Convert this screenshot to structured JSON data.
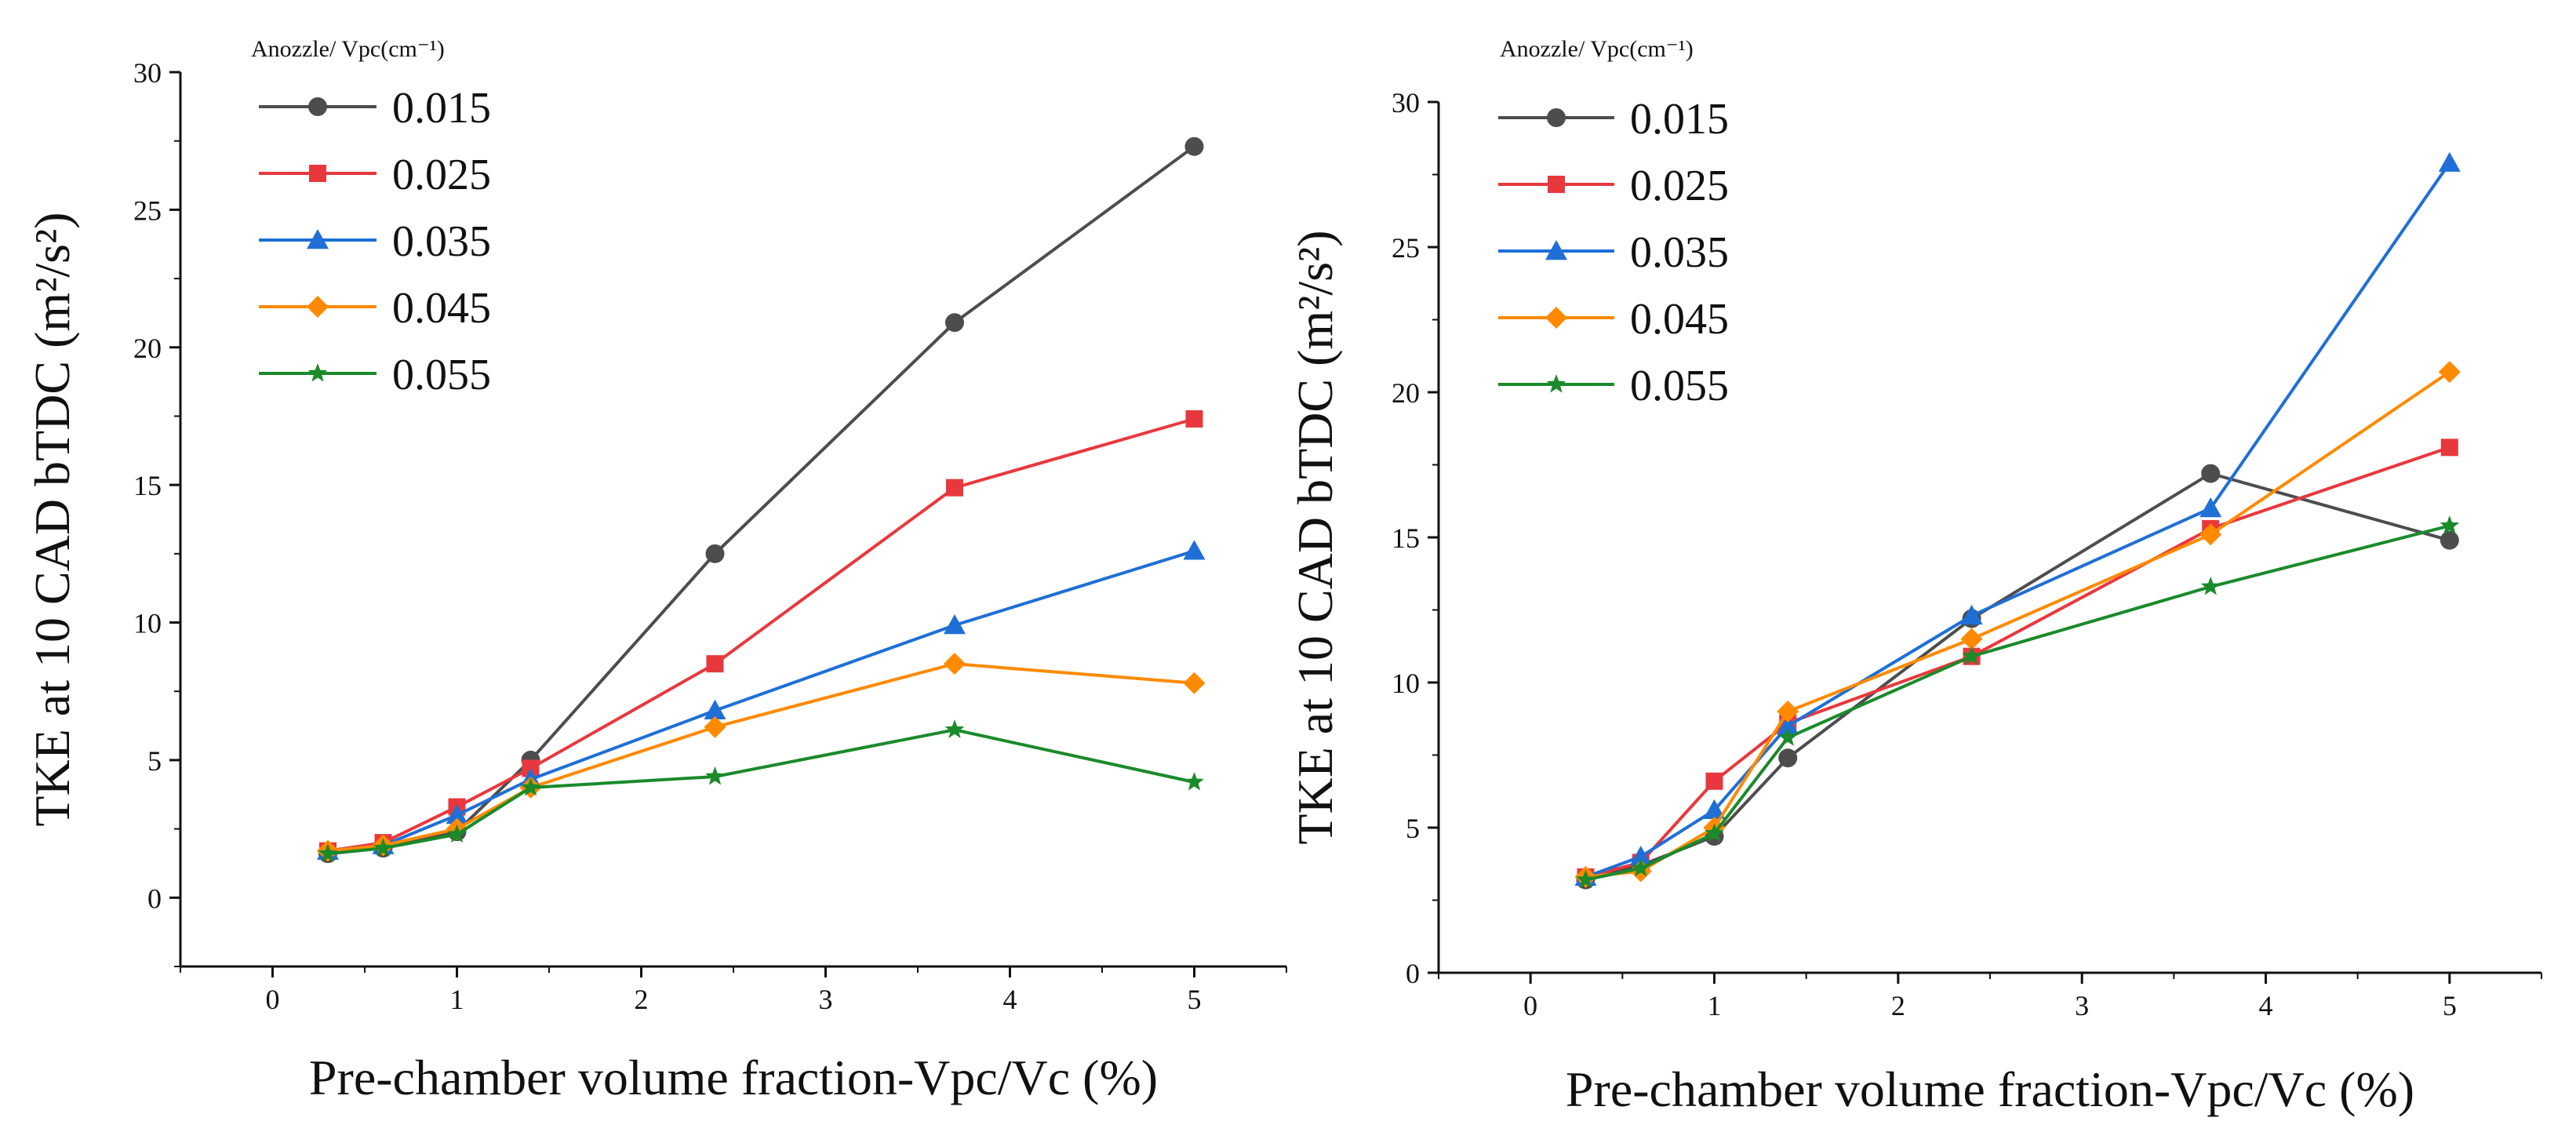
{
  "chart_data": [
    {
      "type": "line",
      "title": "",
      "xlabel": "Pre-chamber volume fraction-Vpc/Vc (%)",
      "ylabel": "TKE at 10 CAD bTDC (m²/s²)",
      "xlim": [
        -0.5,
        5.5
      ],
      "ylim": [
        -2.5,
        30
      ],
      "xticks": [
        "0",
        "1",
        "2",
        "3",
        "4",
        "5"
      ],
      "yticks": [
        "0",
        "5",
        "10",
        "15",
        "20",
        "25",
        "30"
      ],
      "legend_title": "Anozzle/ Vpc(cm⁻¹)",
      "x": [
        0.3,
        0.6,
        1.0,
        1.4,
        2.4,
        3.7,
        5.0
      ],
      "series": [
        {
          "name": "0.015",
          "marker": "circle",
          "color": "#4d4d4d",
          "values": [
            1.6,
            1.8,
            2.4,
            5.0,
            12.5,
            20.9,
            27.3
          ]
        },
        {
          "name": "0.025",
          "marker": "square",
          "color": "#e8383d",
          "values": [
            1.7,
            2.0,
            3.3,
            4.7,
            8.5,
            14.9,
            17.4
          ]
        },
        {
          "name": "0.035",
          "marker": "triangle",
          "color": "#1f6fd6",
          "values": [
            1.7,
            1.9,
            3.0,
            4.3,
            6.8,
            9.9,
            12.6
          ]
        },
        {
          "name": "0.045",
          "marker": "diamond",
          "color": "#ff8a00",
          "values": [
            1.7,
            1.9,
            2.5,
            4.0,
            6.2,
            8.5,
            7.8
          ]
        },
        {
          "name": "0.055",
          "marker": "star",
          "color": "#1a8a2a",
          "values": [
            1.6,
            1.8,
            2.3,
            4.0,
            4.4,
            6.1,
            4.2
          ]
        }
      ]
    },
    {
      "type": "line",
      "title": "",
      "xlabel": "Pre-chamber volume fraction-Vpc/Vc (%)",
      "ylabel": "TKE at 10 CAD bTDC (m²/s²)",
      "xlim": [
        -0.5,
        5.5
      ],
      "ylim": [
        0,
        30
      ],
      "xticks": [
        "0",
        "1",
        "2",
        "3",
        "4",
        "5"
      ],
      "yticks": [
        "0",
        "5",
        "10",
        "15",
        "20",
        "25",
        "30"
      ],
      "legend_title": "Anozzle/ Vpc(cm⁻¹)",
      "x": [
        0.3,
        0.6,
        1.0,
        1.4,
        2.4,
        3.7,
        5.0
      ],
      "series": [
        {
          "name": "0.015",
          "marker": "circle",
          "color": "#4d4d4d",
          "values": [
            3.2,
            3.7,
            4.7,
            7.4,
            12.2,
            17.2,
            14.9
          ]
        },
        {
          "name": "0.025",
          "marker": "square",
          "color": "#e8383d",
          "values": [
            3.3,
            3.8,
            6.6,
            8.6,
            10.9,
            15.3,
            18.1
          ]
        },
        {
          "name": "0.035",
          "marker": "triangle",
          "color": "#1f6fd6",
          "values": [
            3.3,
            4.0,
            5.6,
            8.5,
            12.3,
            16.0,
            27.9
          ]
        },
        {
          "name": "0.045",
          "marker": "diamond",
          "color": "#ff8a00",
          "values": [
            3.3,
            3.5,
            5.0,
            9.0,
            11.5,
            15.1,
            20.7
          ]
        },
        {
          "name": "0.055",
          "marker": "star",
          "color": "#1a8a2a",
          "values": [
            3.2,
            3.6,
            4.8,
            8.1,
            10.9,
            13.3,
            15.4
          ]
        }
      ]
    }
  ]
}
